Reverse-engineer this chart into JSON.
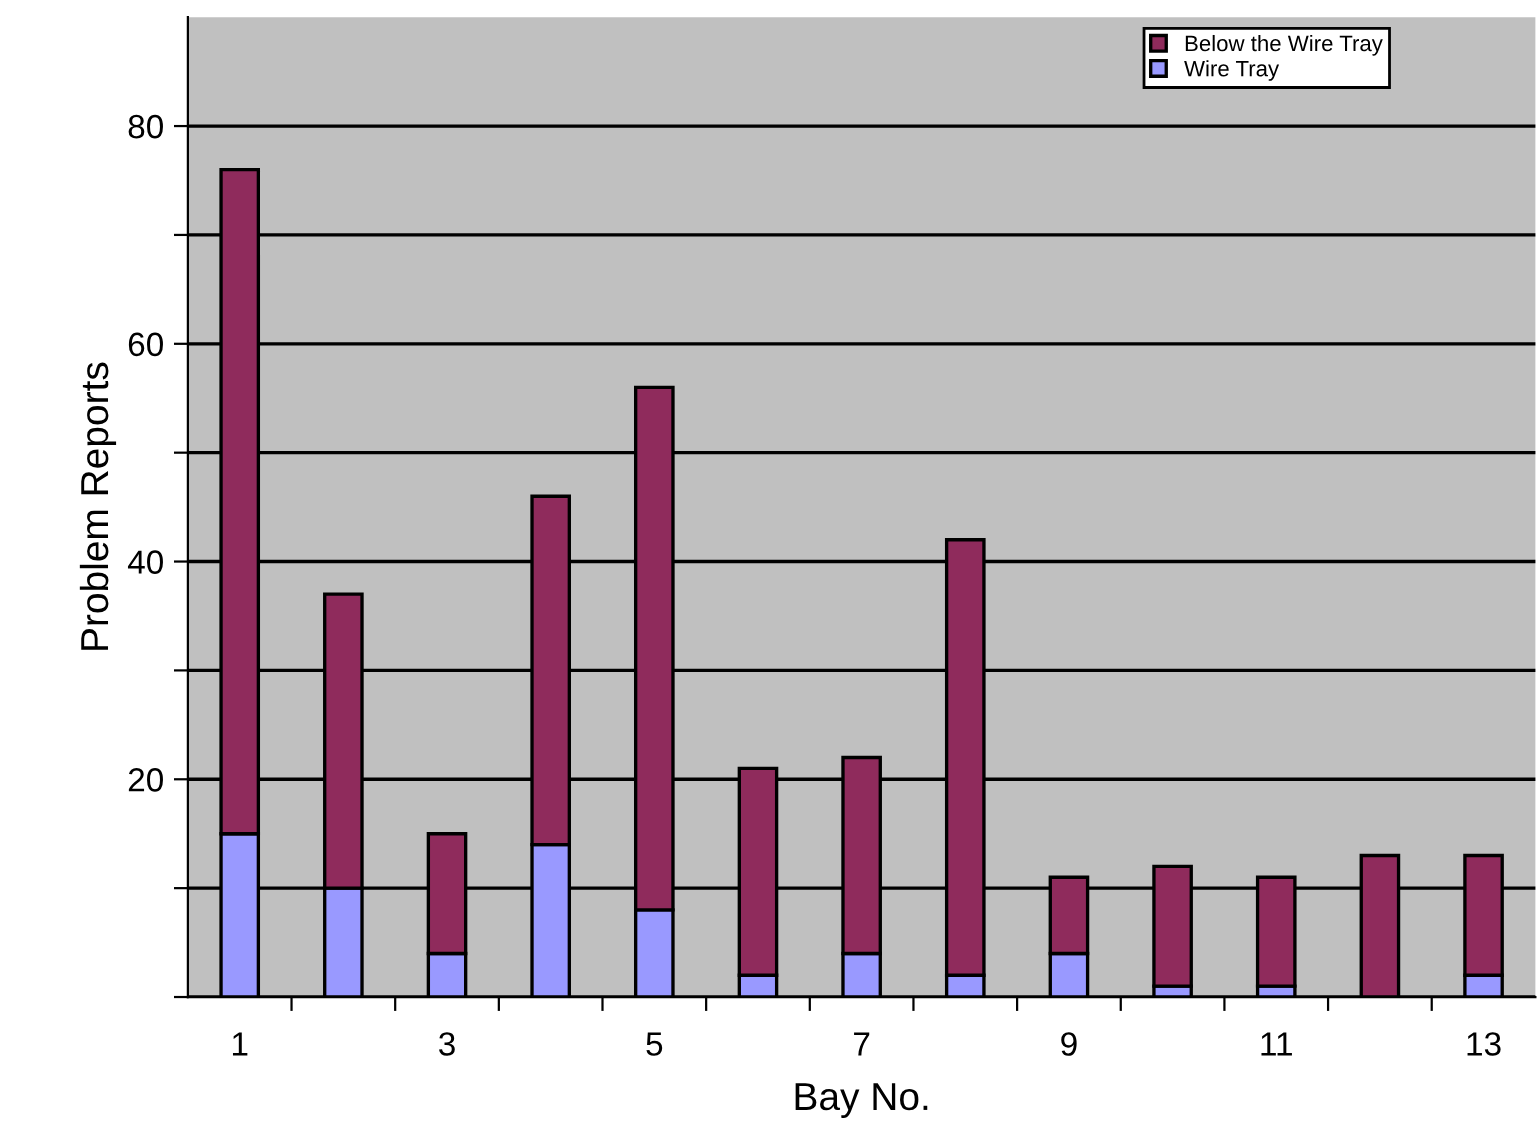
{
  "chart_data": {
    "type": "bar",
    "stacked": true,
    "xlabel": "Bay No.",
    "ylabel": "Problem Reports",
    "categories": [
      "1",
      null,
      "3",
      null,
      "5",
      null,
      "7",
      null,
      "9",
      null,
      "11",
      null,
      "13"
    ],
    "series": [
      {
        "name": "Wire Tray",
        "color": "#9999ff",
        "values": [
          15,
          10,
          4,
          14,
          8,
          2,
          4,
          2,
          4,
          1,
          1,
          0,
          2
        ]
      },
      {
        "name": "Below the Wire Tray",
        "color": "#8f2b5c",
        "values": [
          61,
          27,
          11,
          32,
          48,
          19,
          18,
          40,
          7,
          11,
          10,
          13,
          11
        ]
      }
    ],
    "ylim": [
      0,
      90
    ],
    "yticks": [
      {
        "value": 0,
        "label": null
      },
      {
        "value": 10,
        "label": null
      },
      20,
      {
        "value": 30,
        "label": null
      },
      40,
      {
        "value": 50,
        "label": null
      },
      60,
      {
        "value": 70,
        "label": null
      },
      80
    ],
    "grid": "y",
    "legend": "top right"
  }
}
